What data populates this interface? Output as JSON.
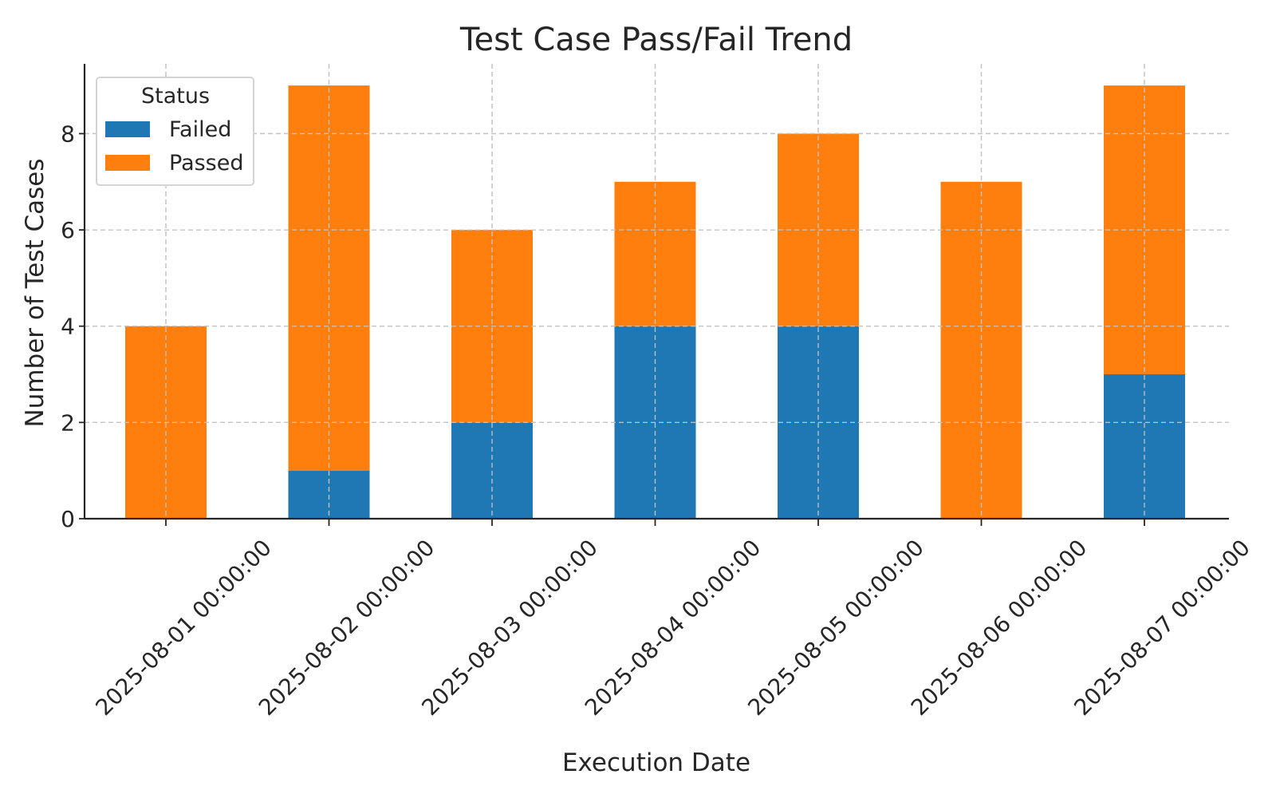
{
  "chart_data": {
    "type": "bar",
    "stacked": true,
    "title": "Test Case Pass/Fail Trend",
    "xlabel": "Execution Date",
    "ylabel": "Number of Test Cases",
    "categories": [
      "2025-08-01 00:00:00",
      "2025-08-02 00:00:00",
      "2025-08-03 00:00:00",
      "2025-08-04 00:00:00",
      "2025-08-05 00:00:00",
      "2025-08-06 00:00:00",
      "2025-08-07 00:00:00"
    ],
    "series": [
      {
        "name": "Failed",
        "color": "#1f77b4",
        "values": [
          0,
          1,
          2,
          4,
          4,
          0,
          3
        ]
      },
      {
        "name": "Passed",
        "color": "#ff7f0e",
        "values": [
          4,
          8,
          4,
          3,
          4,
          7,
          6
        ]
      }
    ],
    "ylim": [
      0,
      9.45
    ],
    "yticks": [
      0,
      2,
      4,
      6,
      8
    ],
    "grid": true,
    "legend": {
      "title": "Status",
      "placement": "top-left"
    }
  }
}
